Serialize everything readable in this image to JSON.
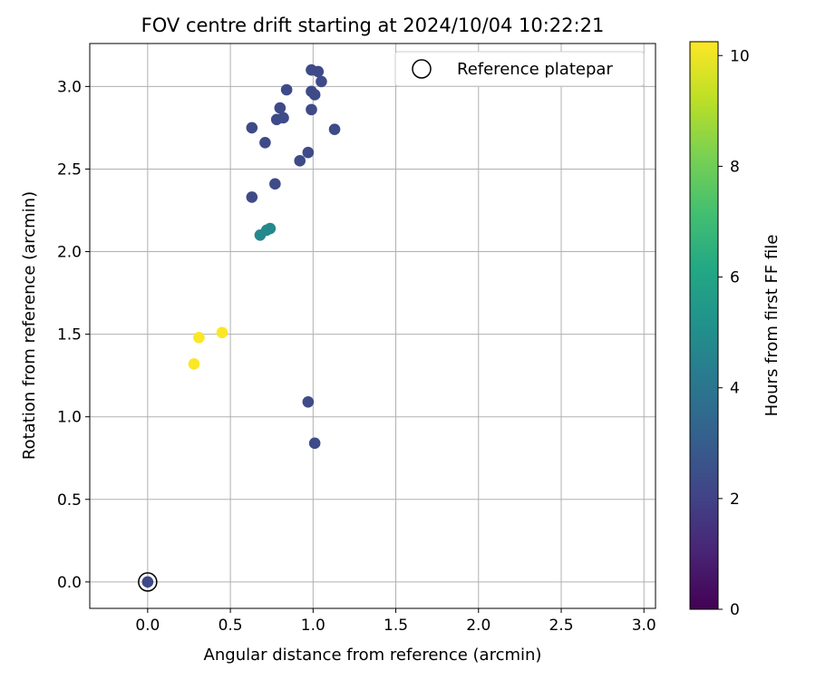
{
  "chart_data": {
    "type": "scatter",
    "title": "FOV centre drift starting at 2024/10/04 10:22:21",
    "xlabel": "Angular distance from reference (arcmin)",
    "ylabel": "Rotation from reference (arcmin)",
    "xlim": [
      -0.35,
      3.07
    ],
    "ylim": [
      -0.16,
      3.26
    ],
    "xticks": [
      0.0,
      0.5,
      1.0,
      1.5,
      2.0,
      2.5,
      3.0
    ],
    "xtick_labels": [
      "0.0",
      "0.5",
      "1.0",
      "1.5",
      "2.0",
      "2.5",
      "3.0"
    ],
    "yticks": [
      0.0,
      0.5,
      1.0,
      1.5,
      2.0,
      2.5,
      3.0
    ],
    "ytick_labels": [
      "0.0",
      "0.5",
      "1.0",
      "1.5",
      "2.0",
      "2.5",
      "3.0"
    ],
    "grid": true,
    "legend_position": "top-right",
    "legend_entries": [
      "Reference platepar"
    ],
    "colorbar": {
      "label": "Hours from first FF file",
      "range": [
        0,
        10.25
      ],
      "ticks": [
        0,
        2,
        4,
        6,
        8,
        10
      ],
      "tick_labels": [
        "0",
        "2",
        "4",
        "6",
        "8",
        "10"
      ],
      "colormap": "viridis"
    },
    "reference_point": {
      "x": 0.0,
      "y": 0.0
    },
    "points": [
      {
        "x": 0.0,
        "y": 0.0,
        "c": 2.2
      },
      {
        "x": 0.99,
        "y": 3.1,
        "c": 2.3
      },
      {
        "x": 1.03,
        "y": 3.09,
        "c": 2.3
      },
      {
        "x": 1.05,
        "y": 3.03,
        "c": 2.3
      },
      {
        "x": 0.84,
        "y": 2.98,
        "c": 2.3
      },
      {
        "x": 0.99,
        "y": 2.97,
        "c": 2.3
      },
      {
        "x": 1.01,
        "y": 2.95,
        "c": 2.3
      },
      {
        "x": 0.8,
        "y": 2.87,
        "c": 2.3
      },
      {
        "x": 0.99,
        "y": 2.86,
        "c": 2.3
      },
      {
        "x": 0.78,
        "y": 2.8,
        "c": 2.3
      },
      {
        "x": 0.82,
        "y": 2.81,
        "c": 2.3
      },
      {
        "x": 0.63,
        "y": 2.75,
        "c": 2.3
      },
      {
        "x": 1.13,
        "y": 2.74,
        "c": 2.3
      },
      {
        "x": 0.71,
        "y": 2.66,
        "c": 2.3
      },
      {
        "x": 0.97,
        "y": 2.6,
        "c": 2.3
      },
      {
        "x": 0.92,
        "y": 2.55,
        "c": 2.3
      },
      {
        "x": 0.77,
        "y": 2.41,
        "c": 2.3
      },
      {
        "x": 0.63,
        "y": 2.33,
        "c": 2.3
      },
      {
        "x": 0.72,
        "y": 2.13,
        "c": 4.8
      },
      {
        "x": 0.74,
        "y": 2.14,
        "c": 4.8
      },
      {
        "x": 0.68,
        "y": 2.1,
        "c": 4.8
      },
      {
        "x": 0.45,
        "y": 1.51,
        "c": 10.2
      },
      {
        "x": 0.31,
        "y": 1.48,
        "c": 10.2
      },
      {
        "x": 0.28,
        "y": 1.32,
        "c": 10.2
      },
      {
        "x": 0.97,
        "y": 1.09,
        "c": 2.3
      },
      {
        "x": 1.01,
        "y": 0.84,
        "c": 2.3
      }
    ]
  }
}
